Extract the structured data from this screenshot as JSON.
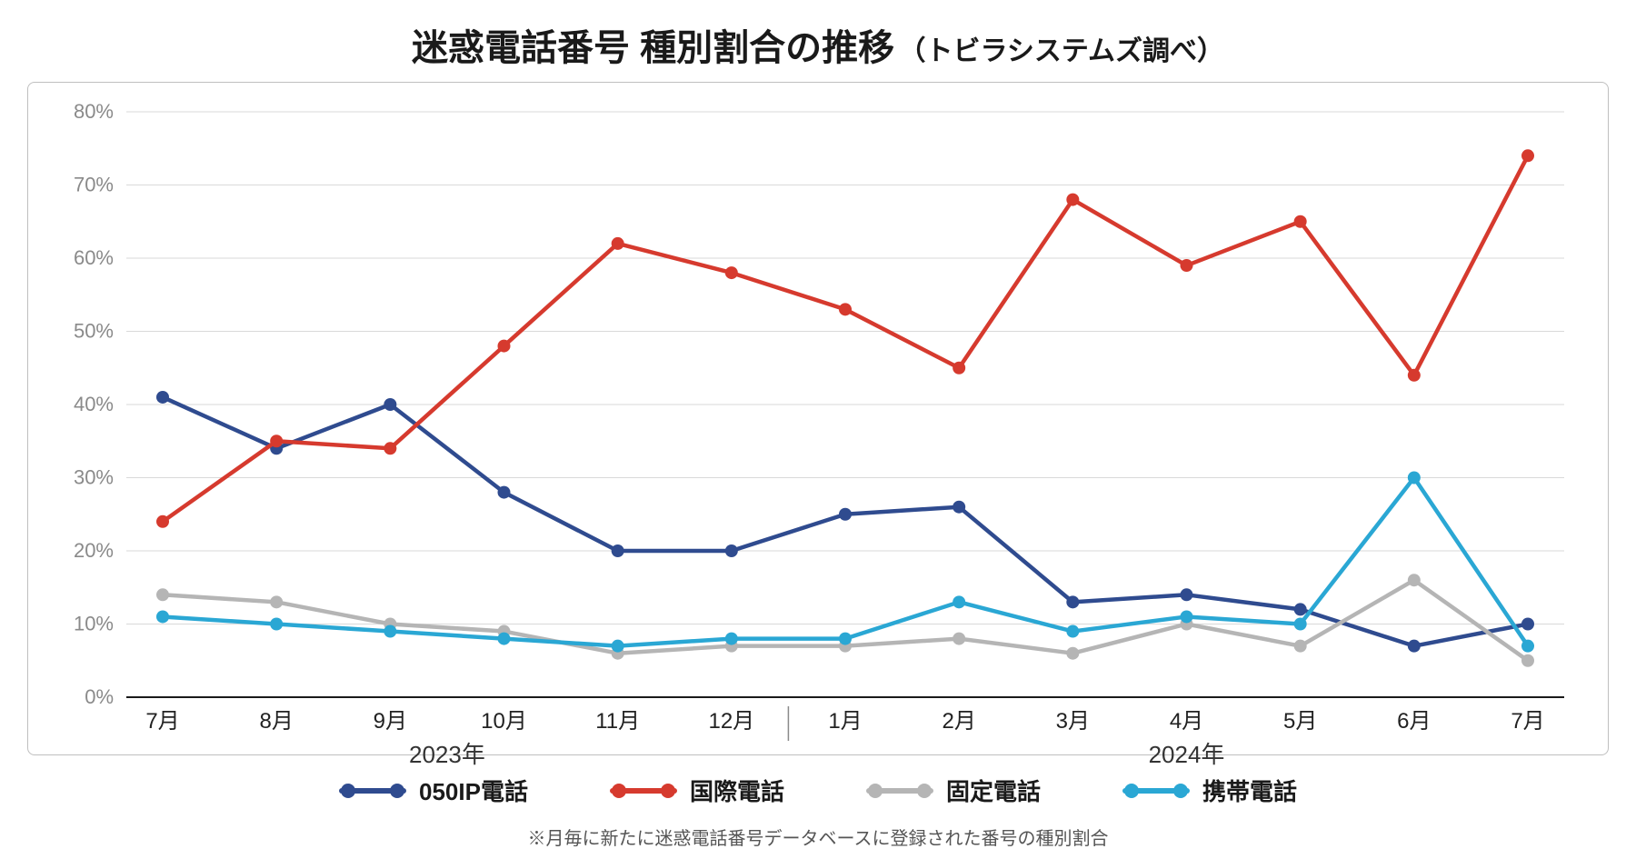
{
  "title_main": "迷惑電話番号 種別割合の推移",
  "title_sub": "（トビラシステムズ調べ）",
  "title_main_fontsize": 40,
  "title_sub_fontsize": 30,
  "footnote": "※月毎に新たに迷惑電話番号データベースに登録された番号の種別割合",
  "footnote_fontsize": 20,
  "chart": {
    "type": "line",
    "background_color": "#ffffff",
    "frame_border_color": "#bfbfbf",
    "axis_line_color": "#1a1a1a",
    "grid_color": "#d9d9d9",
    "tick_label_color": "#8a8a8a",
    "year_label_color": "#333333",
    "year_divider_color": "#8a8a8a",
    "tick_fontsize": 22,
    "x_tick_fontsize": 24,
    "year_fontsize": 26,
    "line_width": 4.5,
    "marker_radius": 7,
    "ylim": [
      0,
      80
    ],
    "ytick_step": 10,
    "ytick_suffix": "%",
    "months": [
      "7月",
      "8月",
      "9月",
      "10月",
      "11月",
      "12月",
      "1月",
      "2月",
      "3月",
      "4月",
      "5月",
      "6月",
      "7月"
    ],
    "year_groups": [
      {
        "label": "2023年",
        "from_index": 0,
        "to_index": 5
      },
      {
        "label": "2024年",
        "from_index": 6,
        "to_index": 12
      }
    ],
    "series": [
      {
        "key": "s0",
        "label": "050IP電話",
        "color": "#2f4b8f",
        "values": [
          41,
          34,
          40,
          28,
          20,
          20,
          25,
          26,
          13,
          14,
          12,
          7,
          10
        ]
      },
      {
        "key": "s1",
        "label": "国際電話",
        "color": "#d63a2e",
        "values": [
          24,
          35,
          34,
          48,
          62,
          58,
          53,
          45,
          68,
          59,
          65,
          44,
          74
        ]
      },
      {
        "key": "s2",
        "label": "固定電話",
        "color": "#b5b5b5",
        "values": [
          14,
          13,
          10,
          9,
          6,
          7,
          7,
          8,
          6,
          10,
          7,
          16,
          5
        ]
      },
      {
        "key": "s3",
        "label": "携帯電話",
        "color": "#2aa7d4",
        "values": [
          11,
          10,
          9,
          8,
          7,
          8,
          8,
          13,
          9,
          11,
          10,
          30,
          7
        ]
      }
    ],
    "legend_fontsize": 26
  }
}
